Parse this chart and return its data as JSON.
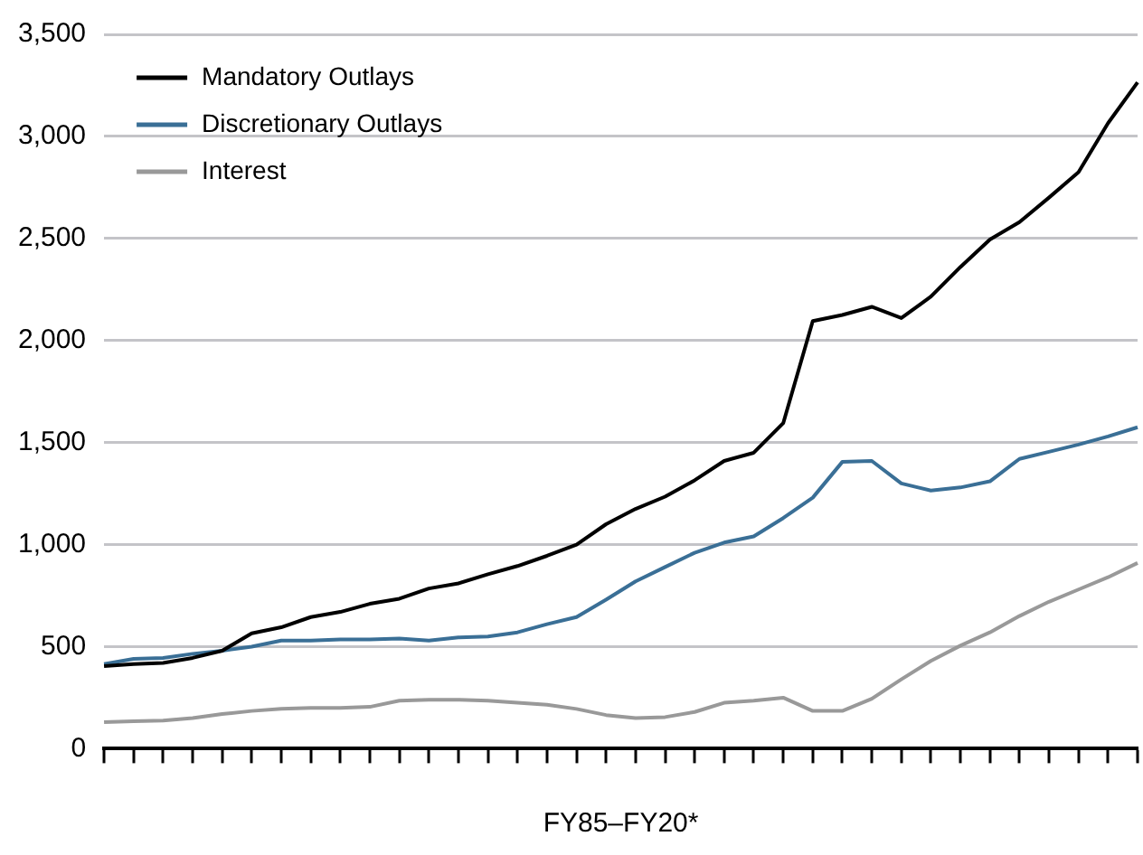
{
  "chart_data": {
    "type": "line",
    "xlabel": "FY85–FY20*",
    "categories": [
      null,
      null,
      null,
      null,
      null,
      null,
      null,
      null,
      null,
      null,
      null,
      null,
      null,
      null,
      null,
      null,
      null,
      null,
      null,
      null,
      null,
      null,
      null,
      null,
      null,
      null,
      null,
      null,
      null,
      null,
      null,
      null,
      null,
      null,
      null,
      null
    ],
    "series": [
      {
        "name": "Mandatory Outlays",
        "color": "#000000",
        "values": [
          405,
          415,
          420,
          445,
          480,
          565,
          595,
          645,
          670,
          710,
          735,
          785,
          810,
          855,
          895,
          945,
          1000,
          1100,
          1175,
          1235,
          1315,
          1410,
          1450,
          1595,
          2095,
          2125,
          2165,
          2110,
          2215,
          2360,
          2495,
          2580,
          2700,
          2825,
          3065,
          3265
        ]
      },
      {
        "name": "Discretionary Outlays",
        "color": "#3a6f96",
        "values": [
          415,
          440,
          445,
          465,
          480,
          500,
          530,
          530,
          535,
          535,
          540,
          530,
          545,
          550,
          570,
          610,
          645,
          730,
          820,
          890,
          960,
          1010,
          1040,
          1130,
          1230,
          1405,
          1410,
          1300,
          1265,
          1280,
          1310,
          1420,
          1455,
          1490,
          1530,
          1575
        ]
      },
      {
        "name": "Interest",
        "color": "#999999",
        "values": [
          130,
          135,
          138,
          150,
          170,
          185,
          195,
          200,
          200,
          205,
          235,
          240,
          240,
          235,
          225,
          215,
          195,
          165,
          150,
          155,
          180,
          225,
          235,
          250,
          185,
          185,
          245,
          340,
          430,
          505,
          570,
          650,
          720,
          780,
          840,
          910
        ]
      }
    ],
    "ylim": [
      0,
      3500
    ],
    "yticks": [
      0,
      500,
      {
        "value": 1000,
        "label": "1,000"
      },
      {
        "value": 1500,
        "label": "1,500"
      },
      {
        "value": 2000,
        "label": "2,000"
      },
      {
        "value": 2500,
        "label": "2,500"
      },
      {
        "value": 3000,
        "label": "3,000"
      },
      {
        "value": 3500,
        "label": "3,500"
      }
    ],
    "grid": "y",
    "legend": "top left",
    "marker": "none",
    "line_style": "solid"
  }
}
